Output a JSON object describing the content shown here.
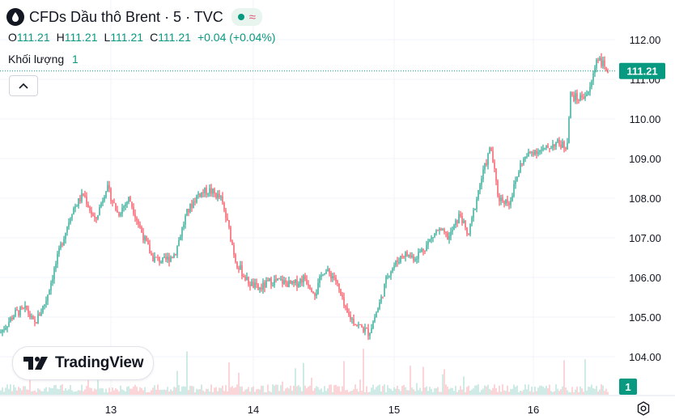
{
  "header": {
    "title": "CFDs Dầu thô Brent · 5 · TVC",
    "symbol_icon": "oil-drop-icon",
    "status_icon": "market-open-dot-icon",
    "wave_icon": "wave-icon"
  },
  "ohlc": {
    "o_label": "O",
    "o_value": "111.21",
    "h_label": "H",
    "h_value": "111.21",
    "l_label": "L",
    "l_value": "111.21",
    "c_label": "C",
    "c_value": "111.21",
    "change": "+0.04 (+0.04%)"
  },
  "volume": {
    "label": "Khối lượng",
    "value": "1"
  },
  "logo": {
    "text": "TradingView"
  },
  "colors": {
    "up": "#089981",
    "down": "#f23645",
    "text_green": "#089981",
    "grid": "#f0f3fa"
  },
  "chart_data": {
    "type": "candlestick",
    "title": "CFDs Dầu thô Brent · 5 · TVC",
    "ylim": [
      103.9,
      112.35
    ],
    "y_ticks": [
      "112.00",
      "111.00",
      "110.00",
      "109.00",
      "108.00",
      "107.00",
      "106.00",
      "105.00",
      "104.00"
    ],
    "x_ticks": [
      "13",
      "14",
      "15",
      "16"
    ],
    "last_price_label": "111.21",
    "volume_label": "1",
    "grid": true,
    "price_path": [
      {
        "t": 0.0,
        "p": 104.6
      },
      {
        "t": 0.2,
        "p": 105.1
      },
      {
        "t": 0.35,
        "p": 105.2
      },
      {
        "t": 0.45,
        "p": 104.8
      },
      {
        "t": 0.6,
        "p": 105.4
      },
      {
        "t": 0.7,
        "p": 106.1
      },
      {
        "t": 0.8,
        "p": 106.8
      },
      {
        "t": 0.95,
        "p": 107.7
      },
      {
        "t": 1.1,
        "p": 108.1
      },
      {
        "t": 1.25,
        "p": 107.4
      },
      {
        "t": 1.4,
        "p": 108.3
      },
      {
        "t": 1.55,
        "p": 107.6
      },
      {
        "t": 1.7,
        "p": 108.0
      },
      {
        "t": 1.85,
        "p": 107.2
      },
      {
        "t": 2.0,
        "p": 106.5
      },
      {
        "t": 2.15,
        "p": 106.4
      },
      {
        "t": 2.3,
        "p": 106.6
      },
      {
        "t": 2.45,
        "p": 107.6
      },
      {
        "t": 2.6,
        "p": 108.1
      },
      {
        "t": 2.75,
        "p": 108.2
      },
      {
        "t": 2.9,
        "p": 108.0
      },
      {
        "t": 3.0,
        "p": 107.3
      },
      {
        "t": 3.1,
        "p": 106.4
      },
      {
        "t": 3.25,
        "p": 105.9
      },
      {
        "t": 3.4,
        "p": 105.7
      },
      {
        "t": 3.55,
        "p": 105.9
      },
      {
        "t": 3.7,
        "p": 105.9
      },
      {
        "t": 3.85,
        "p": 105.8
      },
      {
        "t": 4.0,
        "p": 106.0
      },
      {
        "t": 4.15,
        "p": 105.6
      },
      {
        "t": 4.25,
        "p": 106.2
      },
      {
        "t": 4.4,
        "p": 106.0
      },
      {
        "t": 4.55,
        "p": 105.1
      },
      {
        "t": 4.7,
        "p": 104.8
      },
      {
        "t": 4.85,
        "p": 104.6
      },
      {
        "t": 5.0,
        "p": 105.4
      },
      {
        "t": 5.1,
        "p": 106.1
      },
      {
        "t": 5.3,
        "p": 106.6
      },
      {
        "t": 5.45,
        "p": 106.5
      },
      {
        "t": 5.6,
        "p": 106.8
      },
      {
        "t": 5.75,
        "p": 107.2
      },
      {
        "t": 5.9,
        "p": 107.0
      },
      {
        "t": 6.05,
        "p": 107.6
      },
      {
        "t": 6.15,
        "p": 107.0
      },
      {
        "t": 6.3,
        "p": 108.3
      },
      {
        "t": 6.45,
        "p": 109.3
      },
      {
        "t": 6.55,
        "p": 108.0
      },
      {
        "t": 6.7,
        "p": 107.9
      },
      {
        "t": 6.85,
        "p": 108.9
      },
      {
        "t": 7.0,
        "p": 109.2
      },
      {
        "t": 7.15,
        "p": 109.2
      },
      {
        "t": 7.3,
        "p": 109.4
      },
      {
        "t": 7.45,
        "p": 109.3
      },
      {
        "t": 7.5,
        "p": 110.6
      },
      {
        "t": 7.6,
        "p": 110.5
      },
      {
        "t": 7.75,
        "p": 110.7
      },
      {
        "t": 7.85,
        "p": 111.6
      },
      {
        "t": 7.95,
        "p": 111.3
      },
      {
        "t": 8.0,
        "p": 111.21
      }
    ]
  }
}
